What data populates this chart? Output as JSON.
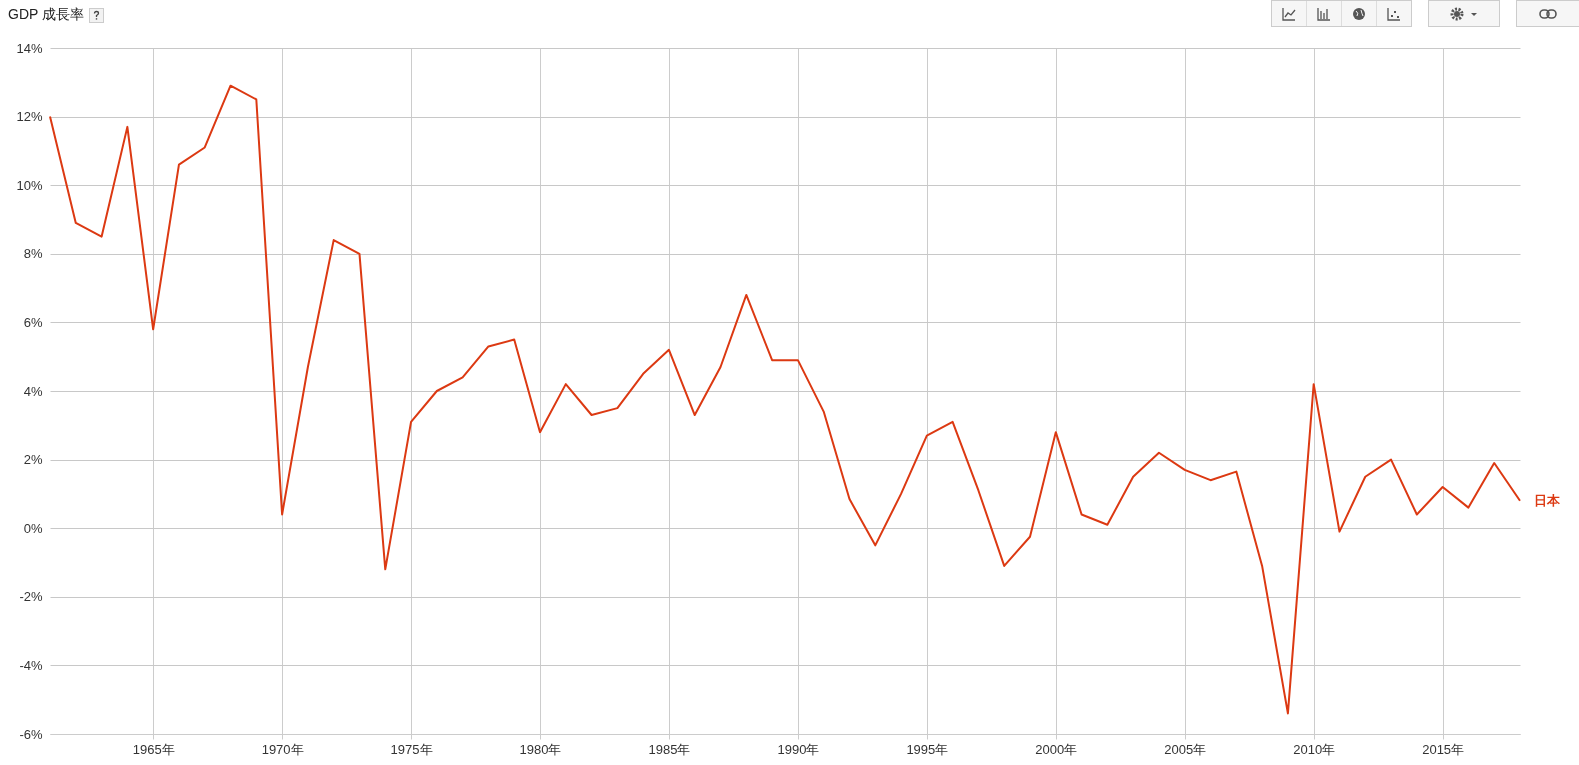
{
  "chart_data": {
    "type": "line",
    "title": "GDP 成長率",
    "x": [
      1961,
      1962,
      1963,
      1964,
      1965,
      1966,
      1967,
      1968,
      1969,
      1970,
      1971,
      1972,
      1973,
      1974,
      1975,
      1976,
      1977,
      1978,
      1979,
      1980,
      1981,
      1982,
      1983,
      1984,
      1985,
      1986,
      1987,
      1988,
      1989,
      1990,
      1991,
      1992,
      1993,
      1994,
      1995,
      1996,
      1997,
      1998,
      1999,
      2000,
      2001,
      2002,
      2003,
      2004,
      2005,
      2006,
      2007,
      2008,
      2009,
      2010,
      2011,
      2012,
      2013,
      2014,
      2015,
      2016,
      2017,
      2018
    ],
    "series": [
      {
        "name": "日本",
        "color": "#dc3912",
        "values": [
          12.0,
          8.9,
          8.5,
          11.7,
          5.8,
          10.6,
          11.1,
          12.9,
          12.5,
          0.4,
          4.7,
          8.4,
          8.0,
          -1.2,
          3.1,
          4.0,
          4.4,
          5.3,
          5.5,
          2.8,
          4.2,
          3.3,
          3.5,
          4.5,
          5.2,
          3.3,
          4.7,
          6.8,
          4.9,
          4.9,
          3.4,
          0.85,
          -0.5,
          1.0,
          2.7,
          3.1,
          1.1,
          -1.1,
          -0.25,
          2.8,
          0.4,
          0.1,
          1.5,
          2.2,
          1.7,
          1.4,
          1.65,
          -1.1,
          -5.4,
          4.2,
          -0.1,
          1.5,
          2.0,
          0.4,
          1.2,
          0.6,
          1.9,
          0.8
        ]
      }
    ],
    "xlim": [
      1961,
      2018
    ],
    "xticks": [
      {
        "value": 1965,
        "label": "1965年"
      },
      {
        "value": 1970,
        "label": "1970年"
      },
      {
        "value": 1975,
        "label": "1975年"
      },
      {
        "value": 1980,
        "label": "1980年"
      },
      {
        "value": 1985,
        "label": "1985年"
      },
      {
        "value": 1990,
        "label": "1990年"
      },
      {
        "value": 1995,
        "label": "1995年"
      },
      {
        "value": 2000,
        "label": "2000年"
      },
      {
        "value": 2005,
        "label": "2005年"
      },
      {
        "value": 2010,
        "label": "2010年"
      },
      {
        "value": 2015,
        "label": "2015年"
      }
    ],
    "ylim": [
      -6,
      14
    ],
    "yticks": [
      {
        "value": -6,
        "label": "-6%"
      },
      {
        "value": -4,
        "label": "-4%"
      },
      {
        "value": -2,
        "label": "-2%"
      },
      {
        "value": 0,
        "label": "0%"
      },
      {
        "value": 2,
        "label": "2%"
      },
      {
        "value": 4,
        "label": "4%"
      },
      {
        "value": 6,
        "label": "6%"
      },
      {
        "value": 8,
        "label": "8%"
      },
      {
        "value": 10,
        "label": "10%"
      },
      {
        "value": 12,
        "label": "12%"
      },
      {
        "value": 14,
        "label": "14%"
      }
    ],
    "grid": true,
    "legend": false,
    "marker": "none",
    "line_style": "solid"
  }
}
